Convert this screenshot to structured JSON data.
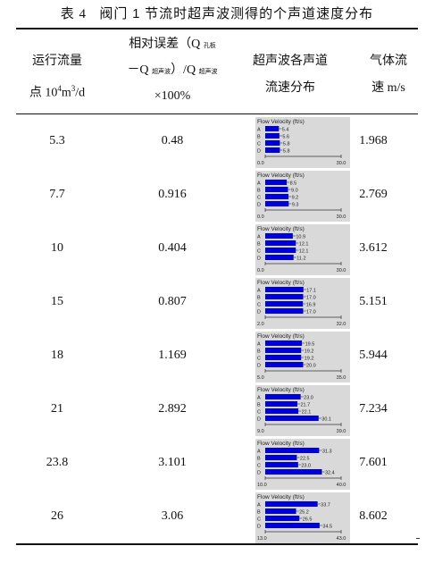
{
  "caption": {
    "label": "表 4",
    "before_num": "阀门",
    "num": "1",
    "after_num": "节流时超声波测得的个声道速度分布"
  },
  "headers": {
    "col1": {
      "line1": "运行流量",
      "line2_pre": "点 10",
      "line2_sup1": "4",
      "line2_mid": "m",
      "line2_sup2": "3",
      "line2_post": "/d"
    },
    "col2": {
      "line1_pre": "相对误差（Q",
      "line1_sub": "孔板",
      "line2_pre": "－Q",
      "line2_sub1": "超声波",
      "line2_mid": "）/Q",
      "line2_sub2": "超声波",
      "line3": "×100%"
    },
    "col3": {
      "line1": "超声波各声道",
      "line2": "流速分布"
    },
    "col4": {
      "line1": "气体流",
      "line2": "速 m/s"
    }
  },
  "chart_title": "Flow Velocity (ft/s)",
  "channel_labels": [
    "A",
    "B",
    "C",
    "D"
  ],
  "colors": {
    "bar": "#0000dd",
    "chart_bg": "#d9d9d9"
  },
  "rows": [
    {
      "flow": "5.3",
      "error": "0.48",
      "speed": "1.968"
    },
    {
      "flow": "7.7",
      "error": "0.916",
      "speed": "2.769"
    },
    {
      "flow": "10",
      "error": "0.404",
      "speed": "3.612"
    },
    {
      "flow": "15",
      "error": "0.807",
      "speed": "5.151"
    },
    {
      "flow": "18",
      "error": "1.169",
      "speed": "5.944"
    },
    {
      "flow": "21",
      "error": "2.892",
      "speed": "7.234"
    },
    {
      "flow": "23.8",
      "error": "3.101",
      "speed": "7.601"
    },
    {
      "flow": "26",
      "error": "3.06",
      "speed": "8.602"
    }
  ],
  "chart_data": [
    {
      "type": "bar",
      "title": "Flow Velocity (ft/s)",
      "categories": [
        "A",
        "B",
        "C",
        "D"
      ],
      "values": [
        5.4,
        5.6,
        5.8,
        5.8
      ],
      "labels": [
        "5.4",
        "5.6",
        "5.8",
        "5.8"
      ],
      "xlim": [
        0.0,
        30.0
      ],
      "xlim_labels": [
        "0.0",
        "30.0"
      ]
    },
    {
      "type": "bar",
      "title": "Flow Velocity (ft/s)",
      "categories": [
        "A",
        "B",
        "C",
        "D"
      ],
      "values": [
        8.5,
        9.0,
        9.2,
        9.3
      ],
      "labels": [
        "8.5",
        "9.0",
        "9.2",
        "9.3"
      ],
      "xlim": [
        0.0,
        30.0
      ],
      "xlim_labels": [
        "0.0",
        "30.0"
      ]
    },
    {
      "type": "bar",
      "title": "Flow Velocity (ft/s)",
      "categories": [
        "A",
        "B",
        "C",
        "D"
      ],
      "values": [
        10.9,
        12.1,
        12.1,
        11.2
      ],
      "labels": [
        "10.9",
        "12.1",
        "12.1",
        "11.2"
      ],
      "xlim": [
        0.0,
        30.0
      ],
      "xlim_labels": [
        "0.0",
        "30.0"
      ]
    },
    {
      "type": "bar",
      "title": "Flow Velocity (ft/s)",
      "categories": [
        "A",
        "B",
        "C",
        "D"
      ],
      "values": [
        17.1,
        17.0,
        16.9,
        17.0
      ],
      "labels": [
        "17.1",
        "17.0",
        "16.9",
        "17.0"
      ],
      "xlim": [
        2.0,
        32.0
      ],
      "xlim_labels": [
        "2.0",
        "32.0"
      ]
    },
    {
      "type": "bar",
      "title": "Flow Velocity (ft/s)",
      "categories": [
        "A",
        "B",
        "C",
        "D"
      ],
      "values": [
        19.5,
        19.2,
        19.2,
        20.0
      ],
      "labels": [
        "19.5",
        "19.2",
        "19.2",
        "20.0"
      ],
      "xlim": [
        5.0,
        35.0
      ],
      "xlim_labels": [
        "5.0",
        "35.0"
      ]
    },
    {
      "type": "bar",
      "title": "Flow Velocity (ft/s)",
      "categories": [
        "A",
        "B",
        "C",
        "D"
      ],
      "values": [
        23.0,
        21.7,
        22.1,
        30.1
      ],
      "labels": [
        "23.0",
        "21.7",
        "22.1",
        "30.1"
      ],
      "xlim": [
        9.0,
        39.0
      ],
      "xlim_labels": [
        "9.0",
        "39.0"
      ]
    },
    {
      "type": "bar",
      "title": "Flow Velocity (ft/s)",
      "categories": [
        "A",
        "B",
        "C",
        "D"
      ],
      "values": [
        31.3,
        22.5,
        23.0,
        32.4
      ],
      "labels": [
        "31.3",
        "22.5",
        "23.0",
        "32.4"
      ],
      "xlim": [
        10.0,
        40.0
      ],
      "xlim_labels": [
        "10.0",
        "40.0"
      ]
    },
    {
      "type": "bar",
      "title": "Flow Velocity (ft/s)",
      "categories": [
        "A",
        "B",
        "C",
        "D"
      ],
      "values": [
        33.7,
        25.2,
        26.5,
        34.5
      ],
      "labels": [
        "33.7",
        "25.2",
        "26.5",
        "34.5"
      ],
      "xlim": [
        13.0,
        43.0
      ],
      "xlim_labels": [
        "13.0",
        "43.0"
      ]
    }
  ]
}
